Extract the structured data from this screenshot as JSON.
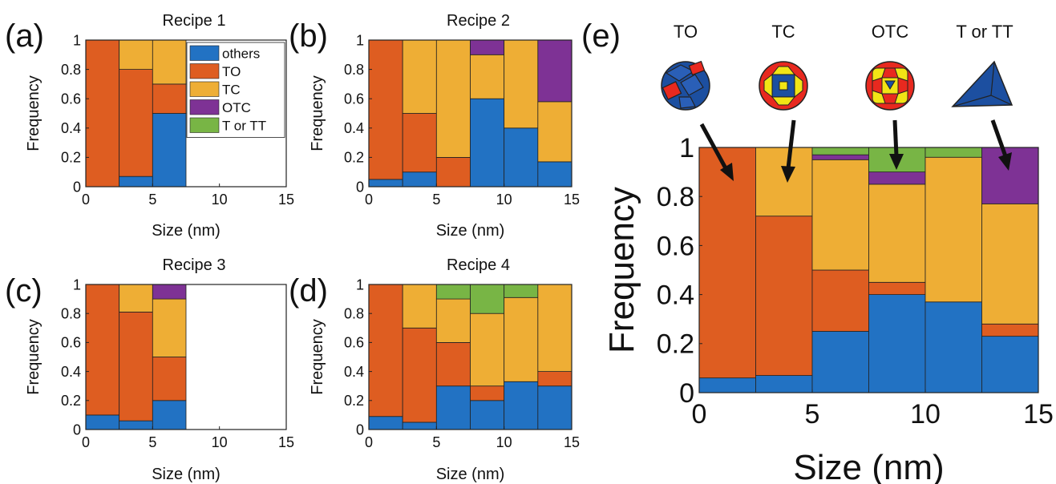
{
  "panel_labels": [
    "(a)",
    "(b)",
    "(c)",
    "(d)",
    "(e)"
  ],
  "stack_order": [
    "others",
    "TO",
    "TC",
    "OTC",
    "T or TT"
  ],
  "colors": {
    "others": "#2272c3",
    "TO": "#de5d21",
    "TC": "#eeae35",
    "OTC": "#7e3295",
    "T or TT": "#78b545"
  },
  "legend": {
    "entries": [
      "others",
      "TO",
      "TC",
      "OTC",
      "T or TT"
    ],
    "location": "top-right of panel (a)"
  },
  "shape_icons": [
    {
      "label": "TO",
      "icon": "truncated-octahedron-icon"
    },
    {
      "label": "TC",
      "icon": "truncated-cube-icon"
    },
    {
      "label": "OTC",
      "icon": "octahedral-truncated-cube-icon"
    },
    {
      "label": "T or TT",
      "icon": "tetrahedron-icon"
    }
  ],
  "chart_data": [
    {
      "type": "bar",
      "title": "Recipe 1",
      "xlabel": "Size (nm)",
      "ylabel": "Frequency",
      "xlim": [
        0,
        15
      ],
      "ylim": [
        0,
        1
      ],
      "xticks": [
        "0",
        "5",
        "10",
        "15"
      ],
      "yticks": [
        "0",
        "0.2",
        "0.4",
        "0.6",
        "0.8",
        "1"
      ],
      "bin_edges": [
        0,
        2.5,
        5,
        7.5,
        10,
        12.5,
        15
      ],
      "stacked": true,
      "series": [
        {
          "name": "others",
          "values": [
            0,
            0.07,
            0.5,
            0,
            0,
            0
          ]
        },
        {
          "name": "TO",
          "values": [
            1.0,
            0.73,
            0.2,
            0,
            0,
            0
          ]
        },
        {
          "name": "TC",
          "values": [
            0,
            0.2,
            0.3,
            0,
            0,
            0
          ]
        },
        {
          "name": "OTC",
          "values": [
            0,
            0,
            0,
            0,
            0,
            0
          ]
        },
        {
          "name": "T or TT",
          "values": [
            0,
            0,
            0,
            0,
            0,
            0
          ]
        }
      ],
      "legend": "top-right"
    },
    {
      "type": "bar",
      "title": "Recipe 2",
      "xlabel": "Size (nm)",
      "ylabel": "Frequency",
      "xlim": [
        0,
        15
      ],
      "ylim": [
        0,
        1
      ],
      "xticks": [
        "0",
        "5",
        "10",
        "15"
      ],
      "yticks": [
        "0",
        "0.2",
        "0.4",
        "0.6",
        "0.8",
        "1"
      ],
      "bin_edges": [
        0,
        2.5,
        5,
        7.5,
        10,
        12.5,
        15
      ],
      "stacked": true,
      "series": [
        {
          "name": "others",
          "values": [
            0.05,
            0.1,
            0,
            0.6,
            0.4,
            0.17
          ]
        },
        {
          "name": "TO",
          "values": [
            0.95,
            0.4,
            0.2,
            0,
            0,
            0
          ]
        },
        {
          "name": "TC",
          "values": [
            0,
            0.5,
            0.8,
            0.3,
            0.6,
            0.41
          ]
        },
        {
          "name": "OTC",
          "values": [
            0,
            0,
            0,
            0.1,
            0,
            0.42
          ]
        },
        {
          "name": "T or TT",
          "values": [
            0,
            0,
            0,
            0,
            0,
            0
          ]
        }
      ]
    },
    {
      "type": "bar",
      "title": "Recipe 3",
      "xlabel": "Size (nm)",
      "ylabel": "Frequency",
      "xlim": [
        0,
        15
      ],
      "ylim": [
        0,
        1
      ],
      "xticks": [
        "0",
        "5",
        "10",
        "15"
      ],
      "yticks": [
        "0",
        "0.2",
        "0.4",
        "0.6",
        "0.8",
        "1"
      ],
      "bin_edges": [
        0,
        2.5,
        5,
        7.5,
        10,
        12.5,
        15
      ],
      "stacked": true,
      "series": [
        {
          "name": "others",
          "values": [
            0.1,
            0.06,
            0.2,
            0,
            0,
            0
          ]
        },
        {
          "name": "TO",
          "values": [
            0.9,
            0.75,
            0.3,
            0,
            0,
            0
          ]
        },
        {
          "name": "TC",
          "values": [
            0,
            0.19,
            0.4,
            0,
            0,
            0
          ]
        },
        {
          "name": "OTC",
          "values": [
            0,
            0,
            0.1,
            0,
            0,
            0
          ]
        },
        {
          "name": "T or TT",
          "values": [
            0,
            0,
            0,
            0,
            0,
            0
          ]
        }
      ]
    },
    {
      "type": "bar",
      "title": "Recipe 4",
      "xlabel": "Size (nm)",
      "ylabel": "Frequency",
      "xlim": [
        0,
        15
      ],
      "ylim": [
        0,
        1
      ],
      "xticks": [
        "0",
        "5",
        "10",
        "15"
      ],
      "yticks": [
        "0",
        "0.2",
        "0.4",
        "0.6",
        "0.8",
        "1"
      ],
      "bin_edges": [
        0,
        2.5,
        5,
        7.5,
        10,
        12.5,
        15
      ],
      "stacked": true,
      "series": [
        {
          "name": "others",
          "values": [
            0.09,
            0.05,
            0.3,
            0.2,
            0.33,
            0.3
          ]
        },
        {
          "name": "TO",
          "values": [
            0.91,
            0.65,
            0.3,
            0.1,
            0,
            0.1
          ]
        },
        {
          "name": "TC",
          "values": [
            0,
            0.3,
            0.3,
            0.5,
            0.58,
            0.6
          ]
        },
        {
          "name": "OTC",
          "values": [
            0,
            0,
            0,
            0,
            0,
            0
          ]
        },
        {
          "name": "T or TT",
          "values": [
            0,
            0,
            0.1,
            0.2,
            0.09,
            0
          ]
        }
      ]
    },
    {
      "type": "bar",
      "title": "",
      "xlabel": "Size (nm)",
      "ylabel": "Frequency",
      "xlim": [
        0,
        15
      ],
      "ylim": [
        0,
        1
      ],
      "xticks": [
        "0",
        "5",
        "10",
        "15"
      ],
      "yticks": [
        "0",
        "0.2",
        "0.4",
        "0.6",
        "0.8",
        "1"
      ],
      "bin_edges": [
        0,
        2.5,
        5,
        7.5,
        10,
        12.5,
        15
      ],
      "stacked": true,
      "series": [
        {
          "name": "others",
          "values": [
            0.06,
            0.07,
            0.25,
            0.4,
            0.37,
            0.23
          ]
        },
        {
          "name": "TO",
          "values": [
            0.94,
            0.65,
            0.25,
            0.05,
            0,
            0.05
          ]
        },
        {
          "name": "TC",
          "values": [
            0,
            0.28,
            0.45,
            0.4,
            0.59,
            0.49
          ]
        },
        {
          "name": "OTC",
          "values": [
            0,
            0,
            0.02,
            0.05,
            0,
            0.23
          ]
        },
        {
          "name": "T or TT",
          "values": [
            0,
            0,
            0.03,
            0.1,
            0.04,
            0
          ]
        }
      ]
    }
  ]
}
